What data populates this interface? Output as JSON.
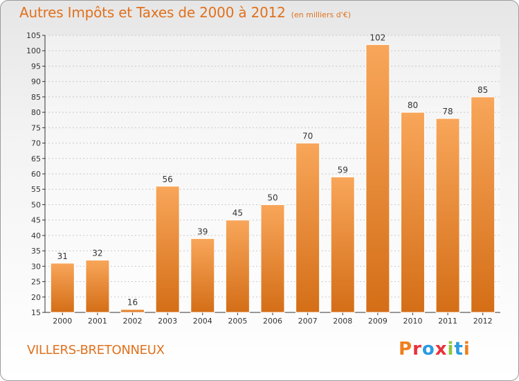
{
  "header": {
    "title": "Autres Impôts et Taxes de 2000 à 2012",
    "unit_note": "(en milliers d'€)"
  },
  "footer": {
    "commune": "VILLERS-BRETONNEUX",
    "logo_text": "Proxiti",
    "logo_colors": [
      "#f07f1e",
      "#e8323c",
      "#2b9be0",
      "#e8323c",
      "#8cc63e",
      "#2b9be0",
      "#f07f1e"
    ]
  },
  "colors": {
    "bar_light": "#f8a65a",
    "bar_dark": "#d46e17",
    "bar_edge": "#ffffff",
    "title": "#e0711d",
    "axis": "#333333",
    "grid": "#c8c8c8"
  },
  "chart_data": {
    "type": "bar",
    "title": "Autres Impôts et Taxes de 2000 à 2012",
    "subtitle": "(en milliers d'€)",
    "xlabel": "",
    "ylabel": "",
    "categories": [
      "2000",
      "2001",
      "2002",
      "2003",
      "2004",
      "2005",
      "2006",
      "2007",
      "2008",
      "2009",
      "2010",
      "2011",
      "2012"
    ],
    "values": [
      31,
      32,
      16,
      56,
      39,
      45,
      50,
      70,
      59,
      102,
      80,
      78,
      85
    ],
    "ylim": [
      15,
      105
    ],
    "yticks": [
      15,
      20,
      25,
      30,
      35,
      40,
      45,
      50,
      55,
      60,
      65,
      70,
      75,
      80,
      85,
      90,
      95,
      100,
      105
    ],
    "grid": true,
    "data_labels": true
  }
}
